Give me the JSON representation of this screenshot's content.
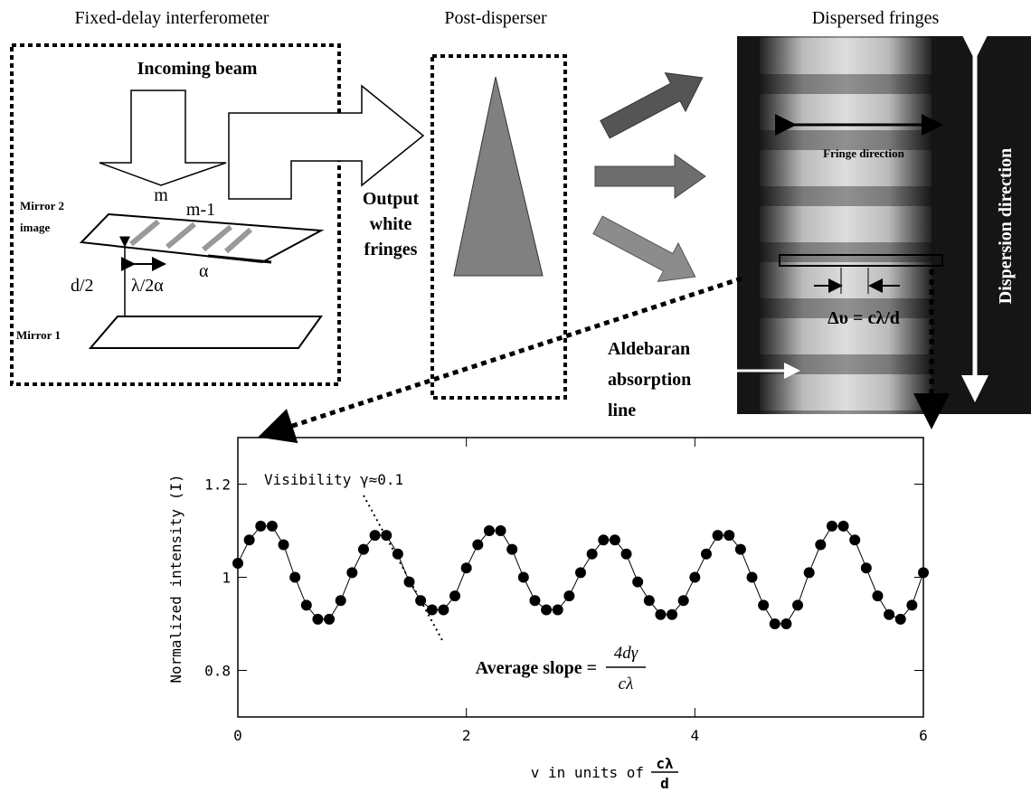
{
  "diagram": {
    "titles": [
      "Fixed-delay interferometer",
      "Post-disperser",
      "Dispersed fringes"
    ],
    "incoming_beam": "Incoming beam",
    "mirror2": [
      "Mirror 2",
      "image"
    ],
    "mirror1": "Mirror 1",
    "order_m": "m",
    "order_m1": "m-1",
    "half_delay": "d/2",
    "spacing": "λ/2α",
    "angle": "α",
    "output": [
      "Output",
      "white",
      "fringes"
    ],
    "fringe_direction": "Fringe direction",
    "delta_nu": "Δυ = cλ/d",
    "absorption": [
      "Aldebaran",
      "absorption",
      "line"
    ],
    "dispersion_direction": "Dispersion direction"
  },
  "chart_data": {
    "type": "line",
    "ylabel": "Normalized intensity (I)",
    "xlabel": "v in units of",
    "xlabel_fraction": {
      "numerator": "cλ",
      "denominator": "d"
    },
    "annotation": "Visibility γ≈0.1",
    "slope_label": "Average slope =",
    "slope_fraction": {
      "numerator": "4dγ",
      "denominator": "cλ"
    },
    "xlim": [
      0,
      6
    ],
    "ylim": [
      0.7,
      1.3
    ],
    "xticks": [
      0,
      2,
      4,
      6
    ],
    "yticks": [
      0.8,
      1,
      1.2
    ],
    "x": [
      0,
      0.1,
      0.2,
      0.3,
      0.4,
      0.5,
      0.6,
      0.7,
      0.8,
      0.9,
      1,
      1.1,
      1.2,
      1.3,
      1.4,
      1.5,
      1.6,
      1.7,
      1.8,
      1.9,
      2,
      2.1,
      2.2,
      2.3,
      2.4,
      2.5,
      2.6,
      2.7,
      2.8,
      2.9,
      3,
      3.1,
      3.2,
      3.3,
      3.4,
      3.5,
      3.6,
      3.7,
      3.8,
      3.9,
      4,
      4.1,
      4.2,
      4.3,
      4.4,
      4.5,
      4.6,
      4.7,
      4.8,
      4.9,
      5,
      5.1,
      5.2,
      5.3,
      5.4,
      5.5,
      5.6,
      5.7,
      5.8,
      5.9,
      6
    ],
    "series": [
      {
        "color": "#000000",
        "values": [
          1.03,
          1.08,
          1.11,
          1.11,
          1.07,
          1.0,
          0.94,
          0.91,
          0.91,
          0.95,
          1.01,
          1.06,
          1.09,
          1.09,
          1.05,
          0.99,
          0.95,
          0.93,
          0.93,
          0.96,
          1.02,
          1.07,
          1.1,
          1.1,
          1.06,
          1.0,
          0.95,
          0.93,
          0.93,
          0.96,
          1.01,
          1.05,
          1.08,
          1.08,
          1.05,
          0.99,
          0.95,
          0.92,
          0.92,
          0.95,
          1.0,
          1.05,
          1.09,
          1.09,
          1.06,
          1.0,
          0.94,
          0.9,
          0.9,
          0.94,
          1.01,
          1.07,
          1.11,
          1.11,
          1.08,
          1.02,
          0.96,
          0.92,
          0.91,
          0.94,
          1.01
        ]
      }
    ]
  }
}
